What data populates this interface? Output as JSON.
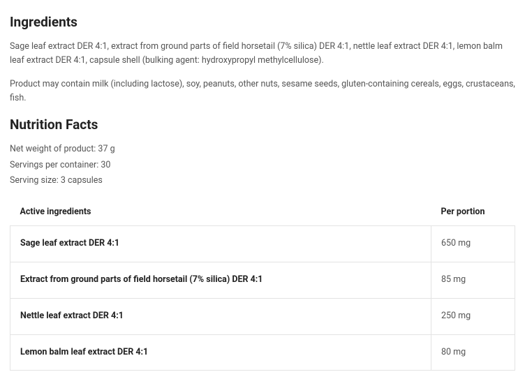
{
  "ingredients": {
    "heading": "Ingredients",
    "text1": "Sage leaf extract DER 4:1, extract from ground parts of field horsetail (7% silica) DER 4:1, nettle leaf extract DER 4:1, lemon balm leaf extract DER 4:1, capsule shell (bulking agent: hydroxypropyl methylcellulose).",
    "text2": "Product may contain milk (including lactose), soy, peanuts, other nuts, sesame seeds, gluten-containing cereals, eggs, crustaceans, fish."
  },
  "nutrition": {
    "heading": "Nutrition Facts",
    "net_weight": "Net weight of product: 37 g",
    "servings": "Servings per container: 30",
    "serving_size": "Serving size: 3 capsules",
    "table": {
      "col_active": "Active ingredients",
      "col_per": "Per portion",
      "rows": {
        "0": {
          "name": "Sage leaf extract DER 4:1",
          "per": "650 mg"
        },
        "1": {
          "name": "Extract from ground parts of field horsetail (7% silica) DER 4:1",
          "per": "85 mg"
        },
        "2": {
          "name": "Nettle leaf extract DER 4:1",
          "per": "250 mg"
        },
        "3": {
          "name": "Lemon balm leaf extract DER 4:1",
          "per": "80 mg"
        }
      }
    }
  },
  "colors": {
    "heading": "#222222",
    "body_text": "#555555",
    "border": "#e3e3e3",
    "background": "#ffffff"
  }
}
